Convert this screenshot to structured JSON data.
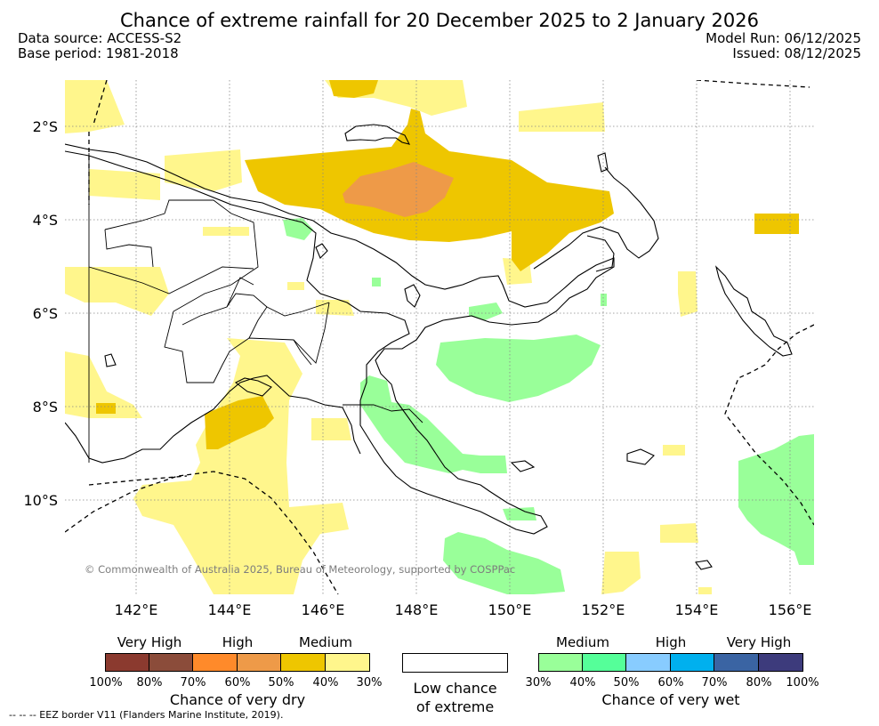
{
  "title": "Chance of extreme rainfall for 20 December 2025 to 2 January 2026",
  "meta": {
    "data_source": "Data source: ACCESS-S2",
    "base_period": "Base period: 1981-2018",
    "model_run": "Model Run: 06/12/2025",
    "issued": "Issued: 08/12/2025"
  },
  "map": {
    "lat_labels": [
      "2°S",
      "4°S",
      "6°S",
      "8°S",
      "10°S"
    ],
    "lon_labels": [
      "142°E",
      "144°E",
      "146°E",
      "148°E",
      "150°E",
      "152°E",
      "154°E",
      "156°E"
    ],
    "copyright": "© Commonwealth of Australia 2025, Bureau of Meteorology, supported by COSPPac"
  },
  "legend": {
    "dry": {
      "groups": [
        "Very High",
        "High",
        "Medium"
      ],
      "colors": [
        "#8b3a2f",
        "#8b4c3a",
        "#ff8a2a",
        "#ee9a48",
        "#eec600",
        "#fff68c"
      ],
      "ticks": [
        "100%",
        "80%",
        "70%",
        "60%",
        "50%",
        "40%",
        "30%"
      ],
      "label": "Chance of very dry"
    },
    "neutral": {
      "line1": "Low chance",
      "line2": "of extreme"
    },
    "wet": {
      "groups": [
        "Medium",
        "High",
        "Very High"
      ],
      "colors": [
        "#99ff99",
        "#55ff99",
        "#88ccff",
        "#00b0ee",
        "#3a64a3",
        "#3d3b7c"
      ],
      "ticks": [
        "30%",
        "40%",
        "50%",
        "60%",
        "70%",
        "80%",
        "100%"
      ],
      "label": "Chance of very wet"
    }
  },
  "eez_note": "--  --  -- EEZ border V11 (Flanders Marine Institute, 2019)."
}
